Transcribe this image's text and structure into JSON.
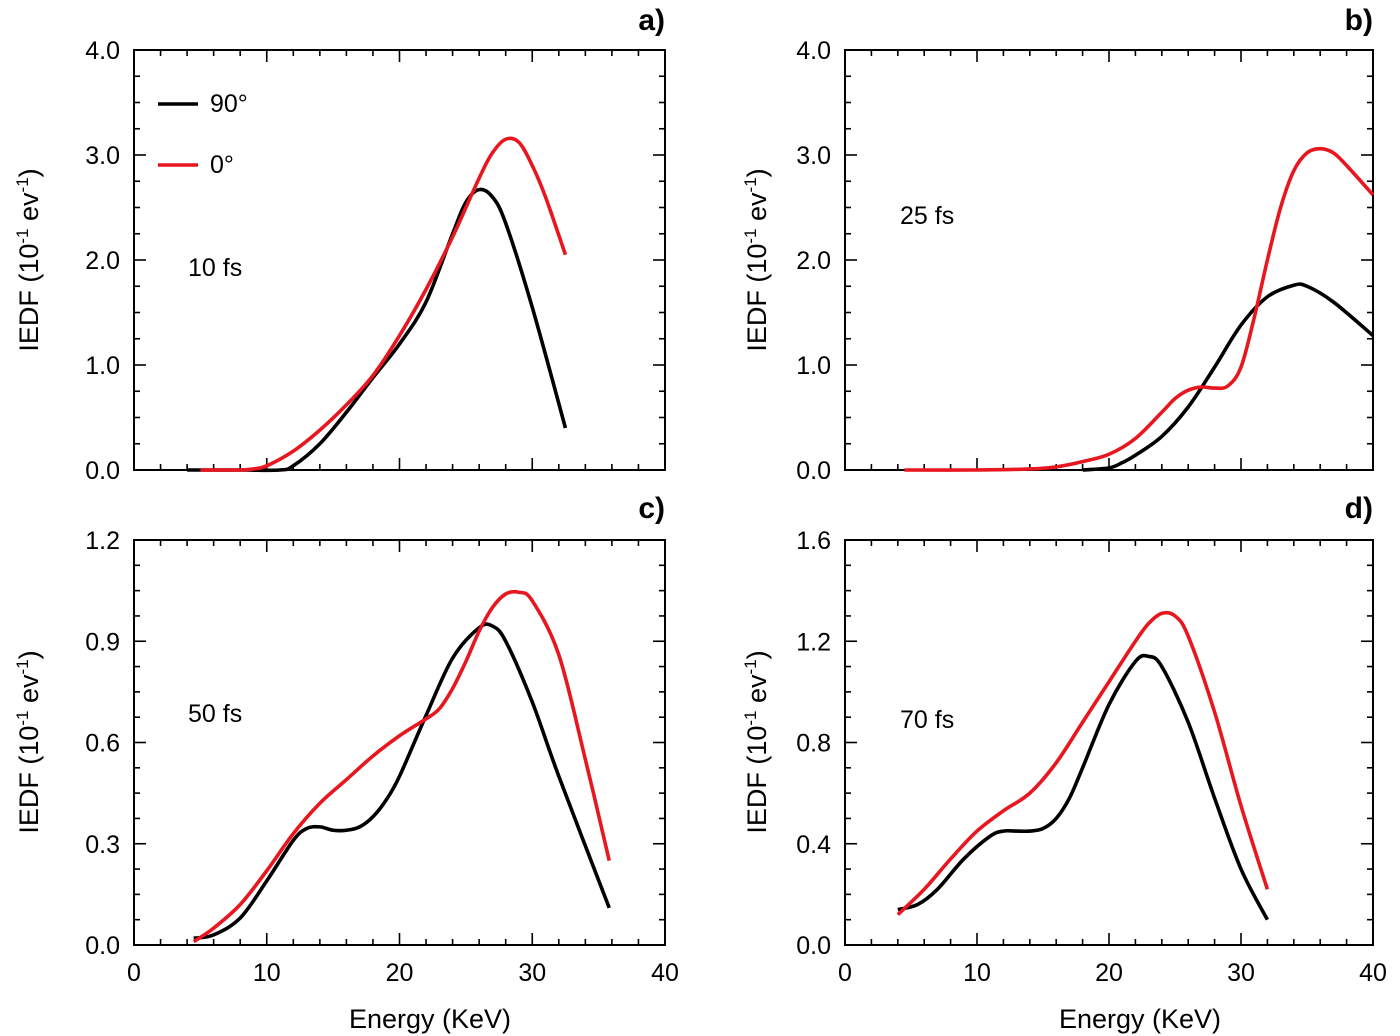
{
  "colors": {
    "series_90": "#000000",
    "series_0": "#e8161e"
  },
  "legend": [
    {
      "label": "90°",
      "color": "#000000"
    },
    {
      "label": "0°",
      "color": "#e8161e"
    }
  ],
  "chart_data": [
    {
      "type": "line",
      "panel_label": "a)",
      "annotation": "10 fs",
      "xlabel": "",
      "ylabel_main": "IEDF (10",
      "ylabel_sup1": "-1",
      "ylabel_mid": " ev",
      "ylabel_sup2": "-1",
      "ylabel_end": ")",
      "xlim": [
        0,
        40
      ],
      "ylim": [
        0,
        4
      ],
      "xticks": [
        0,
        10,
        20,
        30,
        40
      ],
      "xtick_labels": [],
      "yticks": [
        0,
        1,
        2,
        3,
        4
      ],
      "ytick_labels": [
        "0.0",
        "1.0",
        "2.0",
        "3.0",
        "4.0"
      ],
      "legend_location": "top-left",
      "series": [
        {
          "name": "90°",
          "color": "#000000",
          "x": [
            4,
            8,
            11,
            12,
            14,
            16,
            18,
            20,
            22,
            24,
            25,
            26,
            27,
            28,
            30,
            32.5
          ],
          "y": [
            0,
            0,
            0,
            0.04,
            0.25,
            0.55,
            0.88,
            1.2,
            1.6,
            2.25,
            2.55,
            2.67,
            2.6,
            2.35,
            1.55,
            0.4
          ]
        },
        {
          "name": "0°",
          "color": "#e8161e",
          "x": [
            5,
            8,
            9,
            10,
            12,
            14,
            16,
            18,
            20,
            22,
            24,
            26,
            27,
            28,
            29,
            30,
            31,
            32.5
          ],
          "y": [
            0,
            0,
            0.01,
            0.04,
            0.18,
            0.38,
            0.62,
            0.9,
            1.28,
            1.72,
            2.22,
            2.78,
            3.02,
            3.15,
            3.12,
            2.9,
            2.6,
            2.05
          ]
        }
      ]
    },
    {
      "type": "line",
      "panel_label": "b)",
      "annotation": "25 fs",
      "xlabel": "",
      "ylabel_main": "IEDF (10",
      "ylabel_sup1": "-1",
      "ylabel_mid": " ev",
      "ylabel_sup2": "-1",
      "ylabel_end": ")",
      "xlim": [
        0,
        40
      ],
      "ylim": [
        0,
        4
      ],
      "xticks": [
        0,
        10,
        20,
        30,
        40
      ],
      "xtick_labels": [],
      "yticks": [
        0,
        1,
        2,
        3,
        4
      ],
      "ytick_labels": [
        "0.0",
        "1.0",
        "2.0",
        "3.0",
        "4.0"
      ],
      "series": [
        {
          "name": "90°",
          "color": "#000000",
          "x": [
            18,
            20,
            21,
            22,
            24,
            26,
            28,
            30,
            32,
            34,
            35,
            37,
            40
          ],
          "y": [
            0,
            0.02,
            0.07,
            0.14,
            0.32,
            0.6,
            0.98,
            1.38,
            1.65,
            1.76,
            1.75,
            1.6,
            1.28
          ]
        },
        {
          "name": "0°",
          "color": "#e8161e",
          "x": [
            4.5,
            10,
            14,
            16,
            18,
            20,
            22,
            24,
            25,
            26,
            27,
            28,
            29,
            30,
            31,
            32,
            33,
            34,
            35,
            36,
            37,
            38,
            40
          ],
          "y": [
            0,
            0,
            0.01,
            0.03,
            0.08,
            0.15,
            0.3,
            0.55,
            0.68,
            0.76,
            0.79,
            0.78,
            0.8,
            0.98,
            1.45,
            2.0,
            2.5,
            2.85,
            3.02,
            3.06,
            3.02,
            2.9,
            2.62
          ]
        }
      ]
    },
    {
      "type": "line",
      "panel_label": "c)",
      "annotation": "50 fs",
      "xlabel": "Energy (KeV)",
      "ylabel_main": "IEDF (10",
      "ylabel_sup1": "-1",
      "ylabel_mid": " ev",
      "ylabel_sup2": "-1",
      "ylabel_end": ")",
      "xlim": [
        0,
        40
      ],
      "ylim": [
        0,
        1.2
      ],
      "xticks": [
        0,
        10,
        20,
        30,
        40
      ],
      "xtick_labels": [
        "0",
        "10",
        "20",
        "30",
        "40"
      ],
      "yticks": [
        0,
        0.3,
        0.6,
        0.9,
        1.2
      ],
      "ytick_labels": [
        "0.0",
        "0.3",
        "0.6",
        "0.9",
        "1.2"
      ],
      "series": [
        {
          "name": "90°",
          "color": "#000000",
          "x": [
            4.5,
            6,
            8,
            10,
            12,
            13,
            14,
            15,
            16,
            17,
            18,
            19,
            20,
            22,
            24,
            26,
            27,
            28,
            30,
            32,
            35.8
          ],
          "y": [
            0.02,
            0.03,
            0.08,
            0.19,
            0.31,
            0.345,
            0.35,
            0.34,
            0.34,
            0.35,
            0.38,
            0.43,
            0.5,
            0.68,
            0.85,
            0.94,
            0.945,
            0.9,
            0.72,
            0.5,
            0.11
          ]
        },
        {
          "name": "0°",
          "color": "#e8161e",
          "x": [
            4.5,
            6,
            8,
            10,
            12,
            14,
            16,
            18,
            20,
            22,
            23,
            24,
            25,
            26,
            27,
            28,
            29,
            30,
            32,
            34,
            35.8
          ],
          "y": [
            0.01,
            0.05,
            0.12,
            0.22,
            0.33,
            0.42,
            0.49,
            0.56,
            0.62,
            0.67,
            0.7,
            0.76,
            0.84,
            0.93,
            1.0,
            1.04,
            1.045,
            1.02,
            0.86,
            0.55,
            0.25
          ]
        }
      ]
    },
    {
      "type": "line",
      "panel_label": "d)",
      "annotation": "70 fs",
      "xlabel": "Energy (KeV)",
      "ylabel_main": "IEDF (10",
      "ylabel_sup1": "-1",
      "ylabel_mid": " ev",
      "ylabel_sup2": "-1",
      "ylabel_end": ")",
      "xlim": [
        0,
        40
      ],
      "ylim": [
        0,
        1.6
      ],
      "xticks": [
        0,
        10,
        20,
        30,
        40
      ],
      "xtick_labels": [
        "0",
        "10",
        "20",
        "30",
        "40"
      ],
      "yticks": [
        0,
        0.4,
        0.8,
        1.2,
        1.6
      ],
      "ytick_labels": [
        "0.0",
        "0.4",
        "0.8",
        "1.2",
        "1.6"
      ],
      "series": [
        {
          "name": "90°",
          "color": "#000000",
          "x": [
            4,
            5.5,
            7,
            9,
            11,
            12,
            13,
            14,
            15,
            16,
            17,
            18,
            20,
            22,
            23,
            24,
            26,
            28,
            30,
            32
          ],
          "y": [
            0.14,
            0.16,
            0.22,
            0.34,
            0.43,
            0.45,
            0.45,
            0.45,
            0.46,
            0.5,
            0.58,
            0.7,
            0.95,
            1.12,
            1.14,
            1.1,
            0.88,
            0.58,
            0.3,
            0.1
          ]
        },
        {
          "name": "0°",
          "color": "#e8161e",
          "x": [
            4,
            6,
            8,
            10,
            12,
            14,
            16,
            18,
            20,
            22,
            23,
            24,
            25,
            26,
            28,
            30,
            32
          ],
          "y": [
            0.12,
            0.22,
            0.34,
            0.45,
            0.53,
            0.6,
            0.72,
            0.88,
            1.04,
            1.2,
            1.27,
            1.31,
            1.3,
            1.22,
            0.92,
            0.55,
            0.22
          ]
        }
      ]
    }
  ]
}
